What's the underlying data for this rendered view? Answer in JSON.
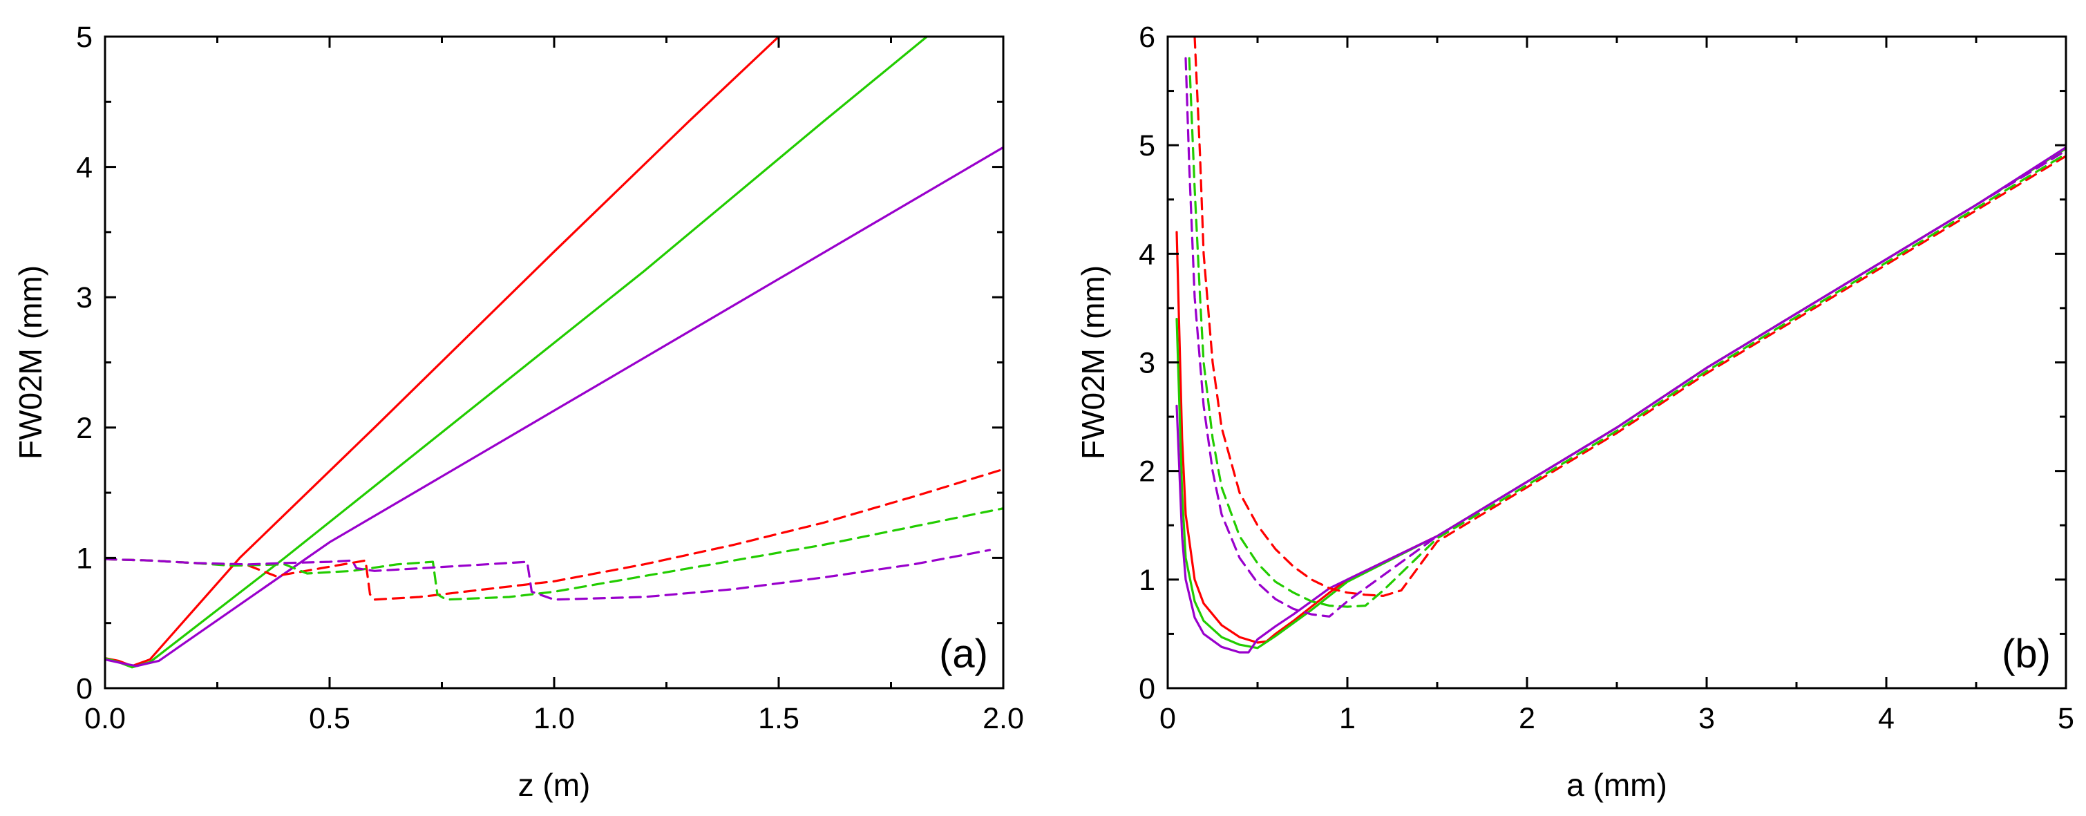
{
  "colors": {
    "red": "#ff0000",
    "green": "#22cc00",
    "purple": "#9900cc",
    "axis": "#000000"
  },
  "chart_data": [
    {
      "type": "line",
      "panel_label": "(a)",
      "xlabel": "z (m)",
      "ylabel": "FW02M (mm)",
      "xlim": [
        0.0,
        2.0
      ],
      "ylim": [
        0,
        5
      ],
      "xticks": [
        0.0,
        0.5,
        1.0,
        1.5,
        2.0
      ],
      "xtick_labels": [
        "0.0",
        "0.5",
        "1.0",
        "1.5",
        "2.0"
      ],
      "yticks": [
        0,
        1,
        2,
        3,
        4,
        5
      ],
      "ytick_labels": [
        "0",
        "1",
        "2",
        "3",
        "4",
        "5"
      ],
      "series": [
        {
          "name": "red-solid",
          "color": "red",
          "dash": false,
          "x": [
            0.0,
            0.03,
            0.06,
            0.1,
            0.3,
            0.6,
            1.0,
            1.3,
            1.5
          ],
          "y": [
            0.23,
            0.21,
            0.17,
            0.22,
            1.0,
            2.0,
            3.35,
            4.35,
            5.0
          ]
        },
        {
          "name": "green-solid",
          "color": "green",
          "dash": false,
          "x": [
            0.0,
            0.03,
            0.06,
            0.1,
            0.4,
            0.8,
            1.2,
            1.6,
            1.83
          ],
          "y": [
            0.23,
            0.2,
            0.16,
            0.2,
            1.0,
            2.1,
            3.2,
            4.35,
            5.0
          ]
        },
        {
          "name": "purple-solid",
          "color": "purple",
          "dash": false,
          "x": [
            0.0,
            0.04,
            0.07,
            0.12,
            0.5,
            1.0,
            1.5,
            2.0
          ],
          "y": [
            0.22,
            0.19,
            0.17,
            0.21,
            1.12,
            2.13,
            3.14,
            4.15
          ]
        },
        {
          "name": "red-dashed",
          "color": "red",
          "dash": true,
          "x": [
            0.0,
            0.1,
            0.15,
            0.2,
            0.25,
            0.32,
            0.35,
            0.38,
            0.48,
            0.58,
            0.59,
            0.6,
            0.7,
            0.8,
            1.0,
            1.2,
            1.4,
            1.6,
            1.8,
            2.0
          ],
          "y": [
            0.99,
            0.98,
            0.97,
            0.96,
            0.95,
            0.94,
            0.9,
            0.86,
            0.92,
            0.98,
            0.72,
            0.68,
            0.7,
            0.74,
            0.82,
            0.95,
            1.1,
            1.27,
            1.47,
            1.68
          ]
        },
        {
          "name": "green-dashed",
          "color": "green",
          "dash": true,
          "x": [
            0.0,
            0.1,
            0.2,
            0.28,
            0.4,
            0.45,
            0.55,
            0.65,
            0.73,
            0.74,
            0.76,
            0.9,
            1.0,
            1.2,
            1.4,
            1.6,
            1.8,
            2.0
          ],
          "y": [
            0.99,
            0.98,
            0.96,
            0.94,
            0.95,
            0.88,
            0.9,
            0.95,
            0.97,
            0.72,
            0.68,
            0.7,
            0.74,
            0.86,
            0.98,
            1.1,
            1.24,
            1.38
          ]
        },
        {
          "name": "purple-dashed",
          "color": "purple",
          "dash": true,
          "x": [
            0.0,
            0.1,
            0.2,
            0.32,
            0.4,
            0.5,
            0.55,
            0.56,
            0.6,
            0.8,
            0.94,
            0.95,
            1.0,
            1.2,
            1.4,
            1.6,
            1.8,
            1.97
          ],
          "y": [
            0.99,
            0.98,
            0.96,
            0.95,
            0.96,
            0.97,
            0.98,
            0.92,
            0.9,
            0.94,
            0.97,
            0.74,
            0.68,
            0.7,
            0.76,
            0.85,
            0.95,
            1.06
          ]
        }
      ]
    },
    {
      "type": "line",
      "panel_label": "(b)",
      "xlabel": "a (mm)",
      "ylabel": "FW02M (mm)",
      "xlim": [
        0,
        5
      ],
      "ylim": [
        0,
        6
      ],
      "xticks": [
        0,
        1,
        2,
        3,
        4,
        5
      ],
      "xtick_labels": [
        "0",
        "1",
        "2",
        "3",
        "4",
        "5"
      ],
      "yticks": [
        0,
        1,
        2,
        3,
        4,
        5,
        6
      ],
      "ytick_labels": [
        "0",
        "1",
        "2",
        "3",
        "4",
        "5",
        "6"
      ],
      "series": [
        {
          "name": "red-solid",
          "color": "red",
          "dash": false,
          "x": [
            0.05,
            0.08,
            0.1,
            0.15,
            0.2,
            0.3,
            0.4,
            0.5,
            0.55,
            0.6,
            0.7,
            0.8,
            0.9,
            1.0,
            1.5,
            2.0,
            2.5,
            3.0,
            3.5,
            4.0,
            4.5,
            5.0
          ],
          "y": [
            4.2,
            2.3,
            1.6,
            1.0,
            0.78,
            0.58,
            0.47,
            0.42,
            0.43,
            0.5,
            0.62,
            0.75,
            0.88,
            1.0,
            1.4,
            1.9,
            2.4,
            2.95,
            3.45,
            3.95,
            4.45,
            4.97
          ]
        },
        {
          "name": "green-solid",
          "color": "green",
          "dash": false,
          "x": [
            0.05,
            0.08,
            0.1,
            0.15,
            0.2,
            0.3,
            0.4,
            0.5,
            0.6,
            0.7,
            0.8,
            0.9,
            1.0,
            1.5,
            2.0,
            2.5,
            3.0,
            3.5,
            4.0,
            4.5,
            5.0
          ],
          "y": [
            3.4,
            1.8,
            1.2,
            0.8,
            0.62,
            0.47,
            0.4,
            0.37,
            0.48,
            0.6,
            0.72,
            0.85,
            0.98,
            1.4,
            1.9,
            2.4,
            2.95,
            3.45,
            3.95,
            4.45,
            4.97
          ]
        },
        {
          "name": "purple-solid",
          "color": "purple",
          "dash": false,
          "x": [
            0.05,
            0.08,
            0.1,
            0.15,
            0.2,
            0.3,
            0.4,
            0.45,
            0.5,
            0.6,
            0.7,
            0.8,
            0.9,
            1.0,
            1.5,
            2.0,
            2.5,
            3.0,
            3.5,
            4.0,
            4.5,
            5.0
          ],
          "y": [
            2.6,
            1.4,
            1.0,
            0.65,
            0.5,
            0.38,
            0.33,
            0.33,
            0.45,
            0.57,
            0.68,
            0.8,
            0.92,
            1.0,
            1.4,
            1.9,
            2.4,
            2.95,
            3.45,
            3.95,
            4.45,
            4.98
          ]
        },
        {
          "name": "red-dashed",
          "color": "red",
          "dash": true,
          "x": [
            0.15,
            0.18,
            0.2,
            0.25,
            0.3,
            0.4,
            0.5,
            0.6,
            0.7,
            0.8,
            0.9,
            1.0,
            1.1,
            1.2,
            1.3,
            1.5,
            2.0,
            2.5,
            3.0,
            3.5,
            4.0,
            4.5,
            5.0
          ],
          "y": [
            6.0,
            4.9,
            4.0,
            3.0,
            2.4,
            1.8,
            1.5,
            1.28,
            1.12,
            1.0,
            0.92,
            0.88,
            0.86,
            0.85,
            0.9,
            1.35,
            1.85,
            2.35,
            2.9,
            3.4,
            3.9,
            4.4,
            4.9
          ]
        },
        {
          "name": "green-dashed",
          "color": "green",
          "dash": true,
          "x": [
            0.12,
            0.15,
            0.18,
            0.2,
            0.25,
            0.3,
            0.4,
            0.5,
            0.6,
            0.7,
            0.8,
            0.9,
            1.0,
            1.1,
            1.2,
            1.5,
            2.0,
            2.5,
            3.0,
            3.5,
            4.0,
            4.5,
            5.0
          ],
          "y": [
            5.8,
            4.6,
            3.6,
            3.0,
            2.3,
            1.85,
            1.4,
            1.15,
            0.98,
            0.88,
            0.8,
            0.76,
            0.75,
            0.76,
            0.9,
            1.38,
            1.87,
            2.37,
            2.92,
            3.42,
            3.92,
            4.42,
            4.92
          ]
        },
        {
          "name": "purple-dashed",
          "color": "purple",
          "dash": true,
          "x": [
            0.1,
            0.12,
            0.15,
            0.2,
            0.25,
            0.3,
            0.4,
            0.5,
            0.6,
            0.7,
            0.8,
            0.9,
            1.0,
            1.5,
            2.0,
            2.5,
            3.0,
            3.5,
            4.0,
            4.5,
            5.0
          ],
          "y": [
            5.8,
            4.8,
            3.6,
            2.6,
            2.0,
            1.6,
            1.2,
            0.97,
            0.82,
            0.73,
            0.68,
            0.66,
            0.8,
            1.4,
            1.9,
            2.4,
            2.95,
            3.45,
            3.95,
            4.45,
            4.95
          ]
        }
      ]
    }
  ]
}
